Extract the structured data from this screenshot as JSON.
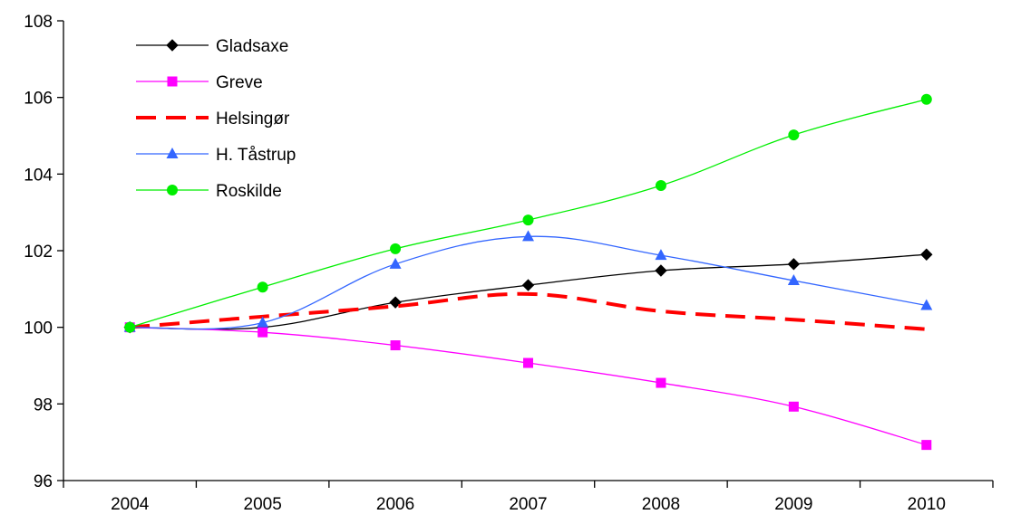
{
  "chart_data": {
    "type": "line",
    "x": [
      "2004",
      "2005",
      "2006",
      "2007",
      "2008",
      "2009",
      "2010"
    ],
    "ylim": [
      96,
      108
    ],
    "yticks": [
      96,
      98,
      100,
      102,
      104,
      106,
      108
    ],
    "grid": false,
    "legend_position": "top-left",
    "title": "",
    "xlabel": "",
    "ylabel": "",
    "series": [
      {
        "name": "Gladsaxe",
        "values": [
          100,
          100.0,
          100.65,
          101.1,
          101.48,
          101.65,
          101.9
        ],
        "color": "#000000",
        "marker": "diamond",
        "line": "solid"
      },
      {
        "name": "Greve",
        "values": [
          100,
          99.87,
          99.53,
          99.07,
          98.55,
          97.93,
          96.93
        ],
        "color": "#ff00ff",
        "marker": "square",
        "line": "solid"
      },
      {
        "name": "Helsingør",
        "values": [
          100,
          100.28,
          100.55,
          100.87,
          100.42,
          100.2,
          99.95
        ],
        "color": "#ff0000",
        "marker": "none",
        "line": "dashed"
      },
      {
        "name": "H. Tåstrup",
        "values": [
          100,
          100.12,
          101.65,
          102.37,
          101.88,
          101.22,
          100.57
        ],
        "color": "#3366ff",
        "marker": "triangle",
        "line": "solid"
      },
      {
        "name": "Roskilde",
        "values": [
          100,
          101.05,
          102.05,
          102.8,
          103.7,
          105.02,
          105.95
        ],
        "color": "#00ee00",
        "marker": "circle",
        "line": "solid"
      }
    ]
  }
}
